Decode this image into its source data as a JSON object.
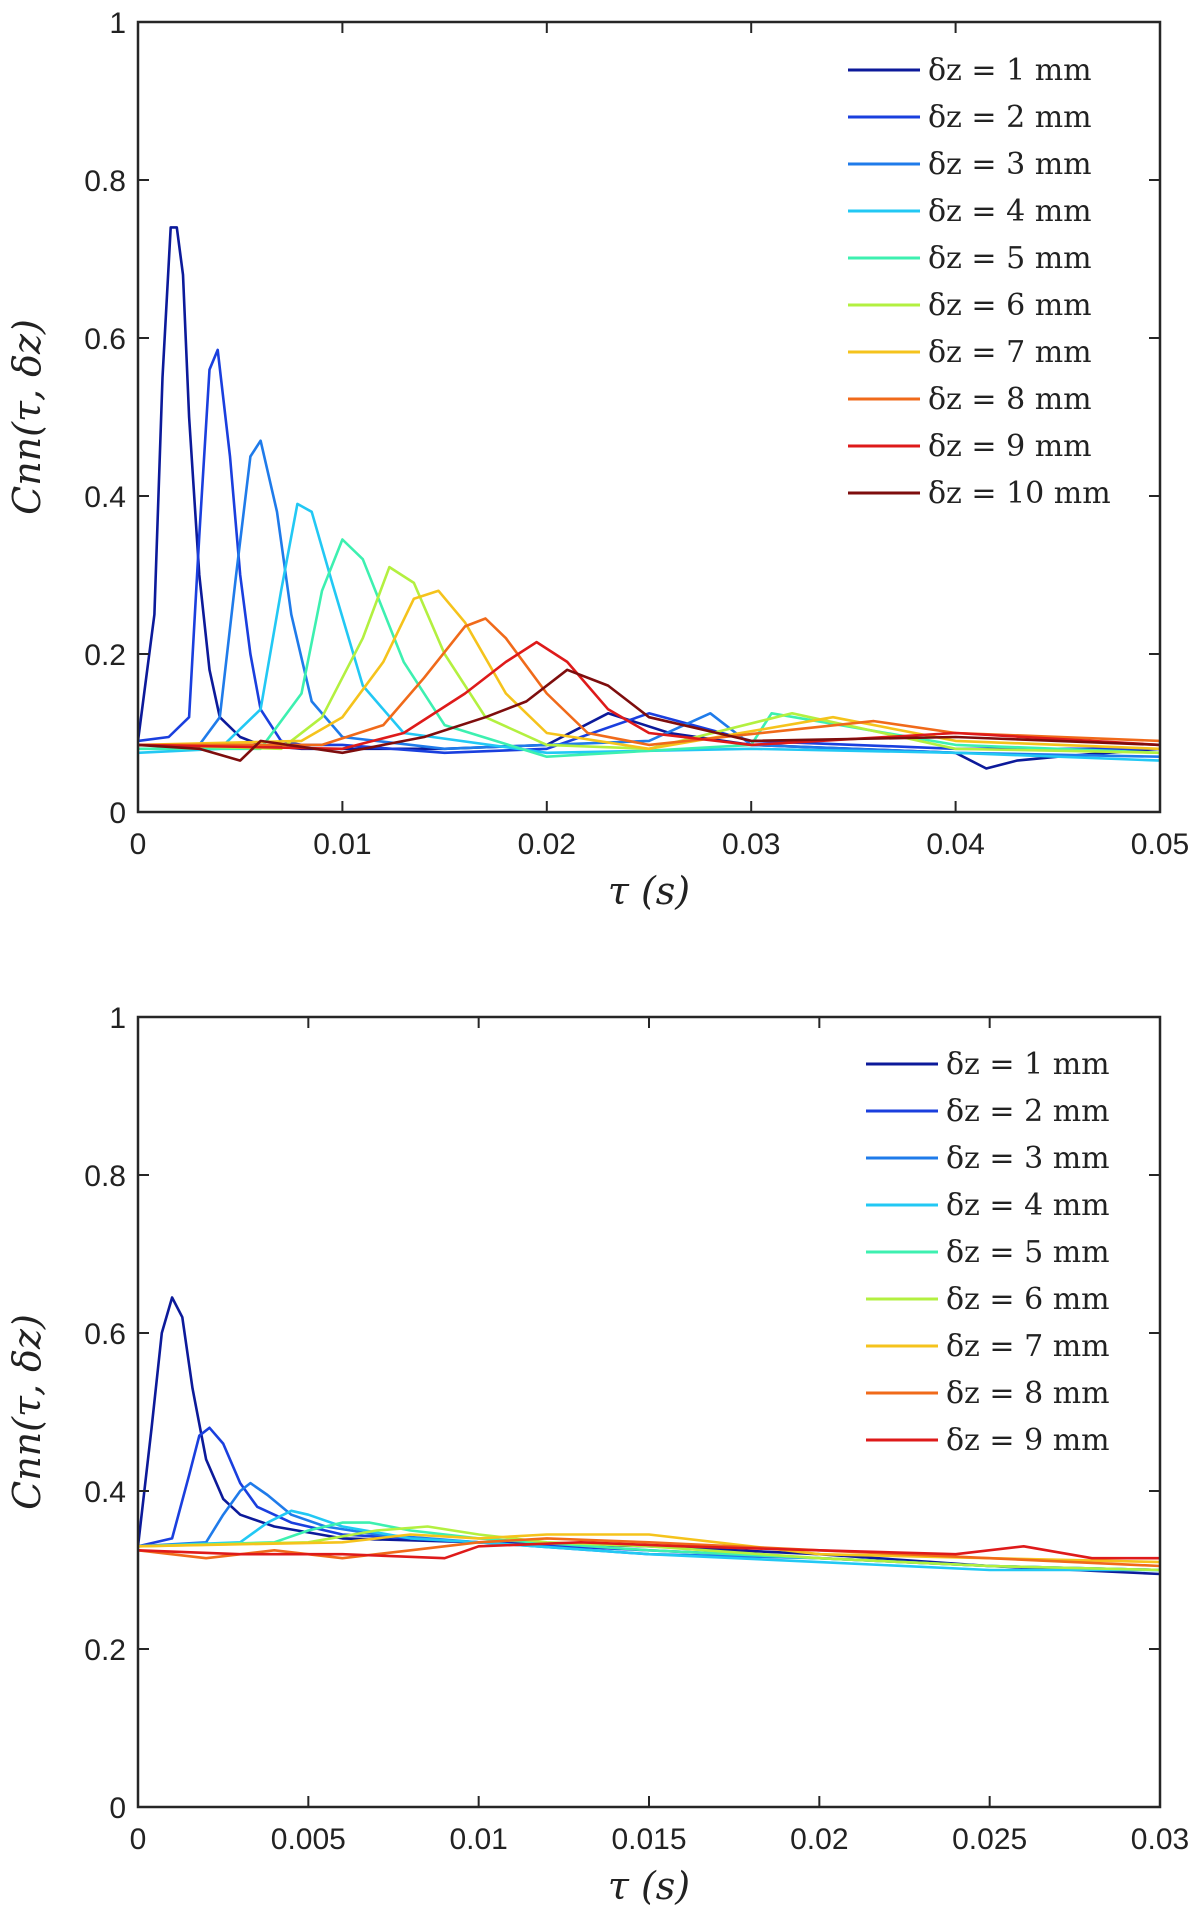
{
  "chart_data": [
    {
      "type": "line",
      "xlabel": "τ (s)",
      "ylabel": "Cnn(τ, δz)",
      "xlim": [
        0,
        0.05
      ],
      "ylim": [
        0,
        1
      ],
      "xticks": [
        "0",
        "0.01",
        "0.02",
        "0.03",
        "0.04",
        "0.05"
      ],
      "yticks": [
        "0",
        "0.2",
        "0.4",
        "0.6",
        "0.8",
        "1"
      ],
      "legend_position": "top-right",
      "series": [
        {
          "name": "δz = 1 mm",
          "color": "#0c1a9a",
          "x": [
            0,
            0.0008,
            0.0012,
            0.0016,
            0.0019,
            0.0022,
            0.0025,
            0.003,
            0.0035,
            0.004,
            0.005,
            0.006,
            0.008,
            0.01,
            0.015,
            0.02,
            0.023,
            0.026,
            0.03,
            0.035,
            0.04,
            0.0415,
            0.043,
            0.045,
            0.05
          ],
          "values": [
            0.09,
            0.25,
            0.55,
            0.74,
            0.74,
            0.68,
            0.5,
            0.3,
            0.18,
            0.12,
            0.095,
            0.085,
            0.08,
            0.08,
            0.08,
            0.085,
            0.125,
            0.1,
            0.085,
            0.08,
            0.075,
            0.055,
            0.065,
            0.07,
            0.08
          ]
        },
        {
          "name": "δz = 2 mm",
          "color": "#1a3fde",
          "x": [
            0,
            0.0015,
            0.0025,
            0.003,
            0.0035,
            0.0039,
            0.0045,
            0.005,
            0.0055,
            0.006,
            0.007,
            0.008,
            0.01,
            0.015,
            0.02,
            0.025,
            0.03,
            0.04,
            0.05
          ],
          "values": [
            0.09,
            0.095,
            0.12,
            0.35,
            0.56,
            0.585,
            0.45,
            0.3,
            0.2,
            0.13,
            0.09,
            0.085,
            0.085,
            0.075,
            0.08,
            0.125,
            0.09,
            0.08,
            0.08
          ]
        },
        {
          "name": "δz = 3 mm",
          "color": "#1f7bea",
          "x": [
            0,
            0.003,
            0.004,
            0.0048,
            0.0055,
            0.006,
            0.0068,
            0.0075,
            0.0085,
            0.01,
            0.015,
            0.02,
            0.025,
            0.028,
            0.03,
            0.04,
            0.05
          ],
          "values": [
            0.085,
            0.085,
            0.12,
            0.3,
            0.45,
            0.47,
            0.38,
            0.25,
            0.14,
            0.095,
            0.08,
            0.085,
            0.09,
            0.125,
            0.085,
            0.075,
            0.07
          ]
        },
        {
          "name": "δz = 4 mm",
          "color": "#22c8f4",
          "x": [
            0,
            0.004,
            0.006,
            0.007,
            0.0078,
            0.0085,
            0.0095,
            0.011,
            0.013,
            0.02,
            0.03,
            0.04,
            0.05
          ],
          "values": [
            0.075,
            0.08,
            0.13,
            0.28,
            0.39,
            0.38,
            0.29,
            0.16,
            0.1,
            0.075,
            0.08,
            0.075,
            0.065
          ]
        },
        {
          "name": "δz = 5 mm",
          "color": "#3df0b0",
          "x": [
            0,
            0.006,
            0.008,
            0.009,
            0.01,
            0.011,
            0.013,
            0.015,
            0.02,
            0.03,
            0.031,
            0.04,
            0.05
          ],
          "values": [
            0.08,
            0.08,
            0.15,
            0.28,
            0.345,
            0.32,
            0.19,
            0.11,
            0.07,
            0.085,
            0.125,
            0.085,
            0.075
          ]
        },
        {
          "name": "δz = 6 mm",
          "color": "#b3f040",
          "x": [
            0,
            0.007,
            0.009,
            0.011,
            0.0123,
            0.0135,
            0.015,
            0.017,
            0.02,
            0.025,
            0.032,
            0.04,
            0.05
          ],
          "values": [
            0.085,
            0.08,
            0.12,
            0.22,
            0.31,
            0.29,
            0.2,
            0.12,
            0.085,
            0.08,
            0.125,
            0.08,
            0.075
          ]
        },
        {
          "name": "δz = 7 mm",
          "color": "#f5c31c",
          "x": [
            0,
            0.008,
            0.01,
            0.012,
            0.0135,
            0.0147,
            0.016,
            0.018,
            0.02,
            0.025,
            0.034,
            0.04,
            0.05
          ],
          "values": [
            0.085,
            0.09,
            0.12,
            0.19,
            0.27,
            0.28,
            0.24,
            0.15,
            0.1,
            0.08,
            0.12,
            0.09,
            0.08
          ]
        },
        {
          "name": "δz = 8 mm",
          "color": "#f06a1a",
          "x": [
            0,
            0.009,
            0.012,
            0.014,
            0.016,
            0.017,
            0.018,
            0.02,
            0.022,
            0.025,
            0.036,
            0.04,
            0.05
          ],
          "values": [
            0.085,
            0.085,
            0.11,
            0.17,
            0.235,
            0.245,
            0.22,
            0.15,
            0.1,
            0.085,
            0.115,
            0.1,
            0.09
          ]
        },
        {
          "name": "δz = 9 mm",
          "color": "#de1a1a",
          "x": [
            0,
            0.01,
            0.013,
            0.016,
            0.018,
            0.0195,
            0.021,
            0.023,
            0.025,
            0.03,
            0.04,
            0.05
          ],
          "values": [
            0.085,
            0.08,
            0.1,
            0.15,
            0.19,
            0.215,
            0.19,
            0.13,
            0.1,
            0.085,
            0.1,
            0.085
          ]
        },
        {
          "name": "δz = 10 mm",
          "color": "#7e0d0d",
          "x": [
            0,
            0.003,
            0.005,
            0.006,
            0.01,
            0.014,
            0.017,
            0.019,
            0.021,
            0.023,
            0.025,
            0.03,
            0.04,
            0.05
          ],
          "values": [
            0.085,
            0.08,
            0.065,
            0.09,
            0.075,
            0.095,
            0.12,
            0.14,
            0.18,
            0.16,
            0.12,
            0.09,
            0.095,
            0.085
          ]
        }
      ]
    },
    {
      "type": "line",
      "xlabel": "τ (s)",
      "ylabel": "Cnn(τ, δz)",
      "xlim": [
        0,
        0.03
      ],
      "ylim": [
        0,
        1
      ],
      "xticks": [
        "0",
        "0.005",
        "0.01",
        "0.015",
        "0.02",
        "0.025",
        "0.03"
      ],
      "yticks": [
        "0",
        "0.2",
        "0.4",
        "0.6",
        "0.8",
        "1"
      ],
      "legend_position": "top-right",
      "series": [
        {
          "name": "δz = 1 mm",
          "color": "#0c1a9a",
          "x": [
            0,
            0.0004,
            0.0007,
            0.001,
            0.0013,
            0.0016,
            0.002,
            0.0025,
            0.003,
            0.004,
            0.006,
            0.01,
            0.015,
            0.02,
            0.025,
            0.03
          ],
          "values": [
            0.33,
            0.48,
            0.6,
            0.645,
            0.62,
            0.53,
            0.44,
            0.39,
            0.37,
            0.355,
            0.34,
            0.335,
            0.33,
            0.32,
            0.305,
            0.295
          ]
        },
        {
          "name": "δz = 2 mm",
          "color": "#1a3fde",
          "x": [
            0,
            0.001,
            0.0015,
            0.0018,
            0.0021,
            0.0025,
            0.003,
            0.0035,
            0.0045,
            0.006,
            0.01,
            0.015,
            0.02,
            0.025,
            0.03
          ],
          "values": [
            0.33,
            0.34,
            0.42,
            0.47,
            0.48,
            0.46,
            0.41,
            0.38,
            0.36,
            0.345,
            0.335,
            0.325,
            0.315,
            0.305,
            0.3
          ]
        },
        {
          "name": "δz = 3 mm",
          "color": "#1f7bea",
          "x": [
            0,
            0.002,
            0.0025,
            0.003,
            0.0033,
            0.0038,
            0.0045,
            0.0055,
            0.007,
            0.01,
            0.015,
            0.02,
            0.025,
            0.03
          ],
          "values": [
            0.33,
            0.335,
            0.37,
            0.4,
            0.41,
            0.395,
            0.37,
            0.355,
            0.345,
            0.335,
            0.32,
            0.315,
            0.305,
            0.3
          ]
        },
        {
          "name": "δz = 4 mm",
          "color": "#22c8f4",
          "x": [
            0,
            0.003,
            0.0038,
            0.0045,
            0.005,
            0.006,
            0.008,
            0.01,
            0.015,
            0.02,
            0.025,
            0.03
          ],
          "values": [
            0.33,
            0.335,
            0.36,
            0.375,
            0.37,
            0.355,
            0.34,
            0.335,
            0.32,
            0.31,
            0.3,
            0.3
          ]
        },
        {
          "name": "δz = 5 mm",
          "color": "#3df0b0",
          "x": [
            0,
            0.004,
            0.005,
            0.006,
            0.0068,
            0.008,
            0.01,
            0.015,
            0.02,
            0.025,
            0.03
          ],
          "values": [
            0.33,
            0.335,
            0.35,
            0.36,
            0.36,
            0.35,
            0.34,
            0.325,
            0.315,
            0.305,
            0.3
          ]
        },
        {
          "name": "δz = 6 mm",
          "color": "#b3f040",
          "x": [
            0,
            0.005,
            0.007,
            0.0085,
            0.01,
            0.012,
            0.015,
            0.02,
            0.025,
            0.03
          ],
          "values": [
            0.33,
            0.335,
            0.35,
            0.355,
            0.345,
            0.335,
            0.33,
            0.315,
            0.305,
            0.3
          ]
        },
        {
          "name": "δz = 7 mm",
          "color": "#f5c31c",
          "x": [
            0,
            0.006,
            0.008,
            0.01,
            0.012,
            0.015,
            0.02,
            0.025,
            0.03
          ],
          "values": [
            0.33,
            0.335,
            0.345,
            0.34,
            0.345,
            0.345,
            0.32,
            0.315,
            0.31
          ]
        },
        {
          "name": "δz = 8 mm",
          "color": "#f06a1a",
          "x": [
            0,
            0.002,
            0.004,
            0.006,
            0.008,
            0.01,
            0.012,
            0.015,
            0.02,
            0.025,
            0.03
          ],
          "values": [
            0.325,
            0.315,
            0.325,
            0.315,
            0.325,
            0.335,
            0.34,
            0.335,
            0.325,
            0.315,
            0.305
          ]
        },
        {
          "name": "δz = 9 mm",
          "color": "#de1a1a",
          "x": [
            0,
            0.003,
            0.006,
            0.009,
            0.01,
            0.013,
            0.016,
            0.02,
            0.024,
            0.026,
            0.028,
            0.03
          ],
          "values": [
            0.325,
            0.32,
            0.32,
            0.315,
            0.33,
            0.335,
            0.33,
            0.325,
            0.32,
            0.33,
            0.315,
            0.315
          ]
        }
      ]
    }
  ]
}
